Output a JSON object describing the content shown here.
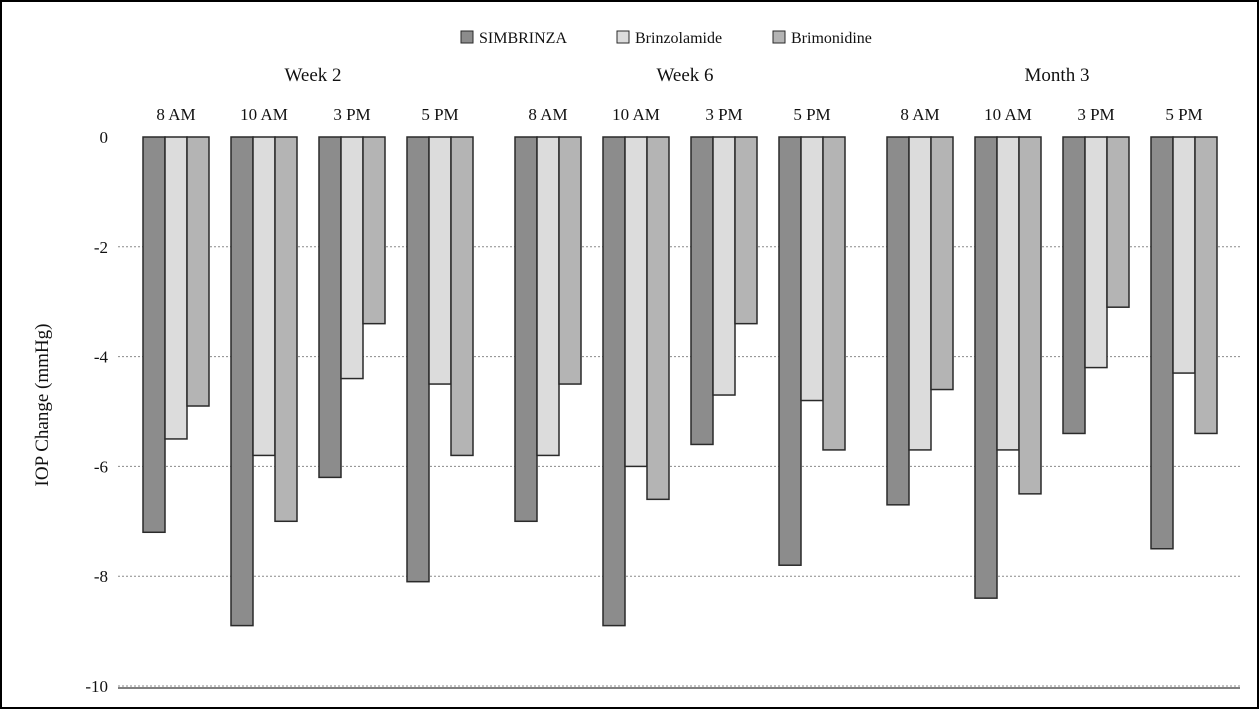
{
  "chart_data": {
    "type": "bar",
    "title": "",
    "ylabel": "IOP Change (mmHg)",
    "xlabel": "",
    "ylim": [
      -10,
      0
    ],
    "yticks": [
      0,
      -2,
      -4,
      -6,
      -8,
      -10
    ],
    "grid": true,
    "legend_position": "top-center",
    "groups": [
      "Week 2",
      "Week 6",
      "Month 3"
    ],
    "times": [
      "8 AM",
      "10 AM",
      "3 PM",
      "5 PM"
    ],
    "series": [
      {
        "name": "SIMBRINZA",
        "color": "#8c8c8c",
        "values": [
          -7.2,
          -8.9,
          -6.2,
          -8.1,
          -7.0,
          -8.9,
          -5.6,
          -7.8,
          -6.7,
          -8.4,
          -5.4,
          -7.5
        ]
      },
      {
        "name": "Brinzolamide",
        "color": "#dcdcdc",
        "values": [
          -5.5,
          -5.8,
          -4.4,
          -4.5,
          -5.8,
          -6.0,
          -4.7,
          -4.8,
          -5.7,
          -5.7,
          -4.2,
          -4.3
        ]
      },
      {
        "name": "Brimonidine",
        "color": "#b4b4b4",
        "values": [
          -4.9,
          -7.0,
          -3.4,
          -5.8,
          -4.5,
          -6.6,
          -3.4,
          -5.7,
          -4.6,
          -6.5,
          -3.1,
          -5.4
        ]
      }
    ]
  }
}
